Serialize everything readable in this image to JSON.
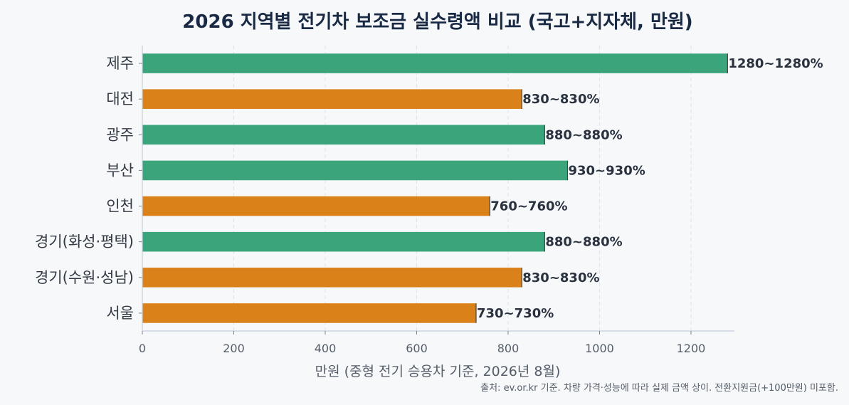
{
  "chart_data": {
    "type": "bar",
    "orientation": "horizontal",
    "title": "2026 지역별 전기차 보조금 실수령액 비교 (국고+지자체, 만원)",
    "xlabel": "만원 (중형 전기 승용차 기준, 2026년 8월)",
    "ylabel": "",
    "xlim": [
      0,
      1295
    ],
    "xticks": [
      0,
      200,
      400,
      600,
      800,
      1000,
      1200
    ],
    "grid": "vertical-dashed",
    "categories": [
      "제주",
      "대전",
      "광주",
      "부산",
      "인천",
      "경기(화성·평택)",
      "경기(수원·성남)",
      "서울"
    ],
    "values": [
      1280,
      830,
      880,
      930,
      760,
      880,
      830,
      730
    ],
    "data_labels": [
      "1280~1280%",
      "830~830%",
      "880~880%",
      "930~930%",
      "760~760%",
      "880~880%",
      "830~830%",
      "730~730%"
    ],
    "bar_colors": [
      "#3aa57a",
      "#db8119",
      "#3aa57a",
      "#3aa57a",
      "#db8119",
      "#3aa57a",
      "#db8119",
      "#db8119"
    ],
    "source_note": "출처: ev.or.kr 기준. 차량 가격·성능에 따라 실제 금액 상이. 전환지원금(+100만원) 미포함."
  },
  "colors": {
    "green": "#3aa57a",
    "orange": "#db8119",
    "background": "#f6f8fa",
    "axis": "#c5cfdc",
    "grid": "#dde3ea",
    "title": "#1a2a44"
  }
}
